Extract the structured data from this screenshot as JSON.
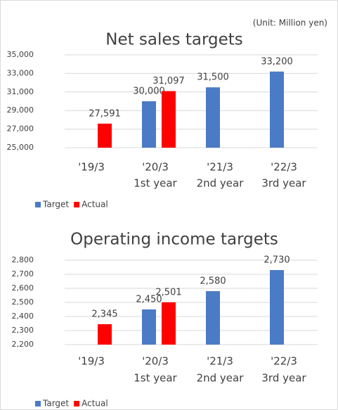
{
  "unit_note": "(Unit: Million yen)",
  "chart_data": [
    {
      "type": "bar",
      "title": "Net sales targets",
      "categories": [
        "'19/3",
        "'20/3",
        "'21/3",
        "'22/3"
      ],
      "category_sublabels": [
        null,
        "1st year",
        "2nd year",
        "3rd year"
      ],
      "series": [
        {
          "name": "Target",
          "color": "#4a7bc4",
          "values": [
            null,
            30000,
            31500,
            33200
          ],
          "value_labels": [
            null,
            "30,000",
            "31,500",
            "33,200"
          ]
        },
        {
          "name": "Actual",
          "color": "#ff0000",
          "values": [
            27591,
            31097,
            null,
            null
          ],
          "value_labels": [
            "27,591",
            "31,097",
            null,
            null
          ]
        }
      ],
      "ylim": [
        25000,
        35000
      ],
      "yticks": [
        {
          "value": 25000,
          "label": "25,000"
        },
        {
          "value": 27000,
          "label": "27,000"
        },
        {
          "value": 29000,
          "label": "29,000"
        },
        {
          "value": 31000,
          "label": "31,000"
        },
        {
          "value": 33000,
          "label": "33,000"
        },
        {
          "value": 35000,
          "label": "35,000"
        }
      ],
      "grid": true,
      "legend": "bottom-left"
    },
    {
      "type": "bar",
      "title": "Operating income targets",
      "categories": [
        "'19/3",
        "'20/3",
        "'21/3",
        "'22/3"
      ],
      "category_sublabels": [
        null,
        "1st year",
        "2nd year",
        "3rd year"
      ],
      "series": [
        {
          "name": "Target",
          "color": "#4a7bc4",
          "values": [
            null,
            2450,
            2580,
            2730
          ],
          "value_labels": [
            null,
            "2,450",
            "2,580",
            "2,730"
          ]
        },
        {
          "name": "Actual",
          "color": "#ff0000",
          "values": [
            2345,
            2501,
            null,
            null
          ],
          "value_labels": [
            "2,345",
            "2,501",
            null,
            null
          ]
        }
      ],
      "ylim": [
        2200,
        2800
      ],
      "yticks": [
        {
          "value": 2200,
          "label": "2,200"
        },
        {
          "value": 2300,
          "label": "2,300"
        },
        {
          "value": 2400,
          "label": "2,400"
        },
        {
          "value": 2500,
          "label": "2,500"
        },
        {
          "value": 2600,
          "label": "2,600"
        },
        {
          "value": 2700,
          "label": "2,700"
        },
        {
          "value": 2800,
          "label": "2,800"
        }
      ],
      "grid": true,
      "legend": "bottom-left"
    }
  ]
}
